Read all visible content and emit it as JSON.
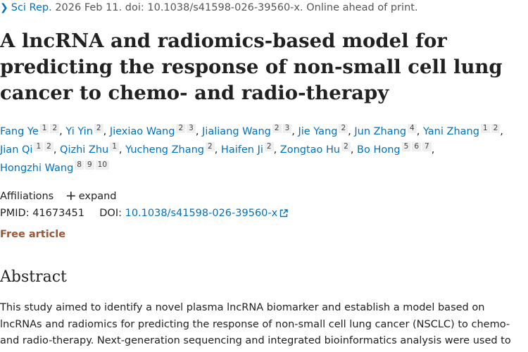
{
  "citation": {
    "journal": "Sci Rep.",
    "rest": " 2026 Feb 11. doi: 10.1038/s41598-026-39560-x. Online ahead of print."
  },
  "title": "A lncRNA and radiomics-based model for predicting the response of non-small cell lung cancer to chemo- and radio-therapy",
  "authors": [
    {
      "name": "Fang Ye",
      "affs": [
        "1",
        "2"
      ]
    },
    {
      "name": "Yi Yin",
      "affs": [
        "2"
      ]
    },
    {
      "name": "Jiexiao Wang",
      "affs": [
        "2",
        "3"
      ]
    },
    {
      "name": "Jialiang Wang",
      "affs": [
        "2",
        "3"
      ]
    },
    {
      "name": "Jie Yang",
      "affs": [
        "2"
      ]
    },
    {
      "name": "Jun Zhang",
      "affs": [
        "4"
      ]
    },
    {
      "name": "Yani Zhang",
      "affs": [
        "1",
        "2"
      ]
    },
    {
      "name": "Jian Qi",
      "affs": [
        "1",
        "2"
      ]
    },
    {
      "name": "Qizhi Zhu",
      "affs": [
        "1"
      ]
    },
    {
      "name": "Yucheng Zhang",
      "affs": [
        "2"
      ]
    },
    {
      "name": "Haifen Ji",
      "affs": [
        "2"
      ]
    },
    {
      "name": "Zongtao Hu",
      "affs": [
        "2"
      ]
    },
    {
      "name": "Bo Hong",
      "affs": [
        "5",
        "6",
        "7"
      ]
    },
    {
      "name": "Hongzhi Wang",
      "affs": [
        "8",
        "9",
        "10"
      ]
    }
  ],
  "affiliations": {
    "label": "Affiliations",
    "expand_label": "expand"
  },
  "ids": {
    "pmid_label": "PMID:",
    "pmid": "41673451",
    "doi_label": "DOI:",
    "doi": "10.1038/s41598-026-39560-x"
  },
  "free_article": "Free article",
  "abstract": {
    "heading": "Abstract",
    "text": "This study aimed to identify a novel plasma lncRNA biomarker and establish a model based on lncRNAs and radiomics for predicting the response of non-small cell lung cancer (NSCLC) to chemo- and radio-therapy. Next-generation sequencing and integrated bioinformatics analysis were used to"
  },
  "colors": {
    "link": "#0071bc",
    "free_article": "#985735",
    "badge_bg": "#eeeeee"
  }
}
